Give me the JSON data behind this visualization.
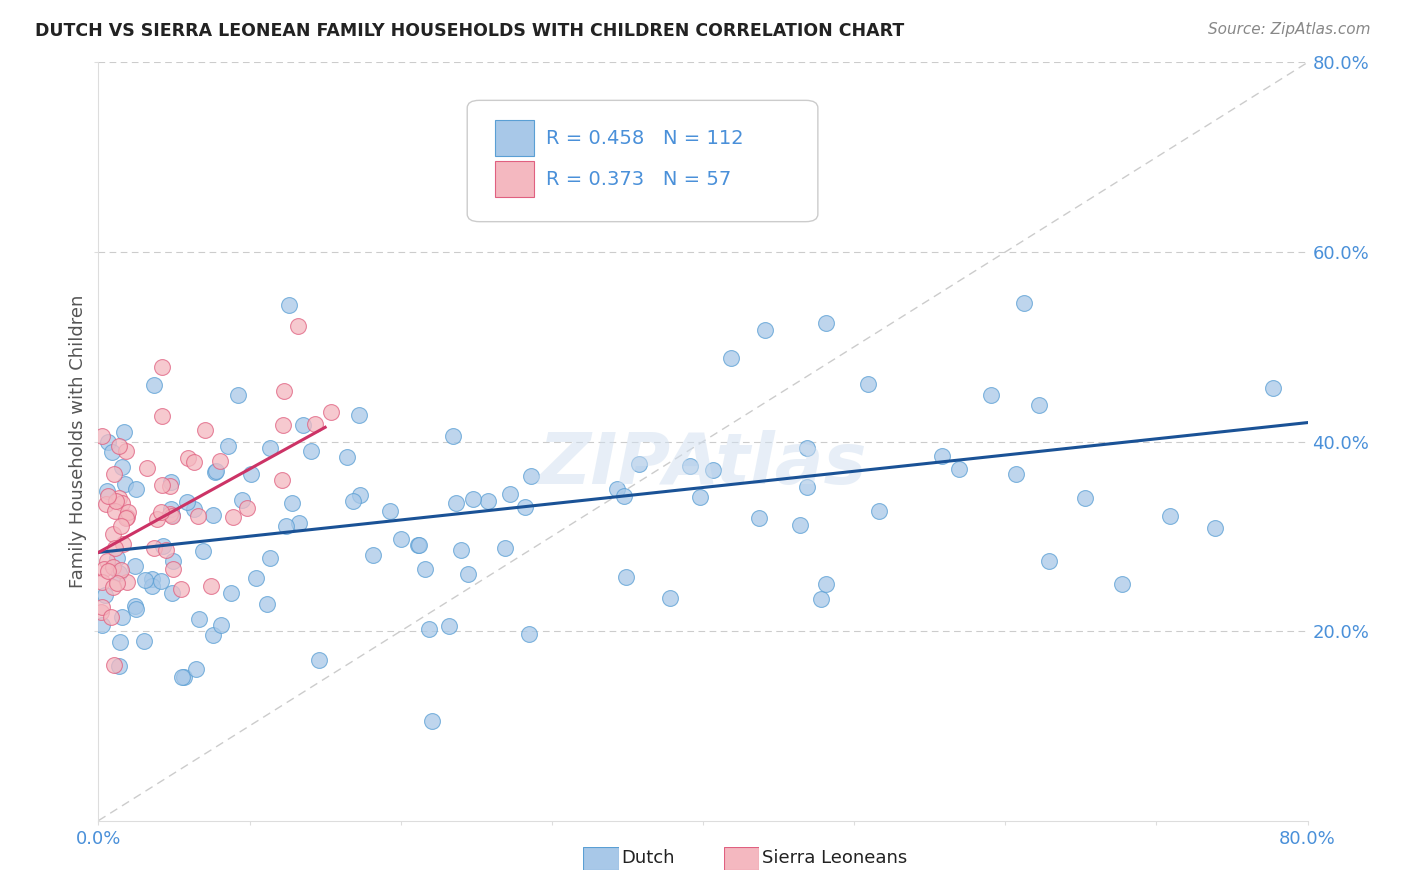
{
  "title": "DUTCH VS SIERRA LEONEAN FAMILY HOUSEHOLDS WITH CHILDREN CORRELATION CHART",
  "source": "Source: ZipAtlas.com",
  "ylabel": "Family Households with Children",
  "xlim": [
    0.0,
    0.8
  ],
  "ylim": [
    0.0,
    0.8
  ],
  "dutch_color": "#a8c8e8",
  "dutch_edge": "#5a9fd4",
  "sierra_color": "#f4b8c0",
  "sierra_edge": "#e06080",
  "trend_dutch_color": "#1a5296",
  "trend_sierra_color": "#cc3366",
  "dutch_R": 0.458,
  "dutch_N": 112,
  "sierra_R": 0.373,
  "sierra_N": 57,
  "dutch_trend_x0": 0.0,
  "dutch_trend_y0": 0.283,
  "dutch_trend_x1": 0.8,
  "dutch_trend_y1": 0.42,
  "sierra_trend_x0": 0.0,
  "sierra_trend_y0": 0.283,
  "sierra_trend_x1": 0.15,
  "sierra_trend_y1": 0.415,
  "axis_color": "#4a90d9",
  "grid_color": "#cccccc",
  "background_color": "#ffffff",
  "legend_text_color": "#333333",
  "legend_r_color": "#4a90d9",
  "legend_n_color": "#e05080",
  "watermark_color": "#d0dff0",
  "seed_dutch": 42,
  "seed_sierra": 7
}
